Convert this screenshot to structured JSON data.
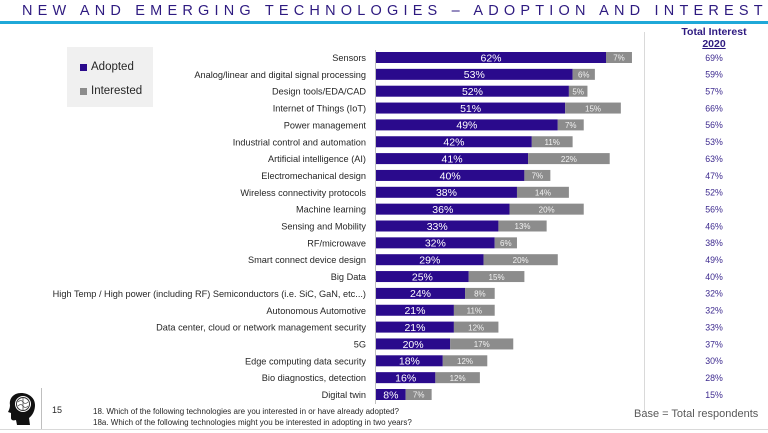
{
  "page": {
    "title": "NEW AND EMERGING TECHNOLOGIES – ADOPTION AND INTEREST",
    "page_number": "15",
    "questions": [
      "18.  Which of the following technologies are you interested in or have already adopted?",
      "18a.  Which of the following technologies might you be interested in adopting in two years?"
    ],
    "base_note": "Base = Total respondents",
    "logo_icon": "brain-head-icon"
  },
  "colors": {
    "adopted": "#2a0a8c",
    "interested": "#8c8c8c",
    "title": "#2e1a80",
    "rule": "#1fa8d8",
    "total_text": "#3d2a8f"
  },
  "legend": {
    "items": [
      {
        "label": "Adopted",
        "color": "#2a0a8c"
      },
      {
        "label": "Interested",
        "color": "#8c8c8c"
      }
    ]
  },
  "total_interest_header": {
    "line1": "Total Interest",
    "line2": "2020"
  },
  "chart_data": {
    "type": "bar",
    "orientation": "horizontal",
    "stacked": true,
    "title": "NEW AND EMERGING TECHNOLOGIES – ADOPTION AND INTEREST",
    "xlabel": "",
    "ylabel": "",
    "xlim": [
      0,
      100
    ],
    "grid": false,
    "legend_position": "top-left",
    "categories": [
      "Sensors",
      "Analog/linear and digital signal processing",
      "Design tools/EDA/CAD",
      "Internet of Things (IoT)",
      "Power management",
      "Industrial control and automation",
      "Artificial intelligence (AI)",
      "Electromechanical design",
      "Wireless connectivity protocols",
      "Machine learning",
      "Sensing and Mobility",
      "RF/microwave",
      "Smart connect device design",
      "Big Data",
      "High Temp / High power (including RF) Semiconductors (i.e. SiC, GaN, etc...)",
      "Autonomous Automotive",
      "Data center, cloud or network management security",
      "5G",
      "Edge computing data security",
      "Bio diagnostics, detection",
      "Digital twin"
    ],
    "series": [
      {
        "name": "Adopted",
        "values": [
          62,
          53,
          52,
          51,
          49,
          42,
          41,
          40,
          38,
          36,
          33,
          32,
          29,
          25,
          24,
          21,
          21,
          20,
          18,
          16,
          8
        ]
      },
      {
        "name": "Interested",
        "values": [
          7,
          6,
          5,
          15,
          7,
          11,
          22,
          7,
          14,
          20,
          13,
          6,
          20,
          15,
          8,
          11,
          12,
          17,
          12,
          12,
          7
        ]
      }
    ],
    "total_interest_2020": [
      "69%",
      "59%",
      "57%",
      "66%",
      "56%",
      "53%",
      "63%",
      "47%",
      "52%",
      "56%",
      "46%",
      "38%",
      "49%",
      "40%",
      "32%",
      "32%",
      "33%",
      "37%",
      "30%",
      "28%",
      "15%"
    ]
  }
}
